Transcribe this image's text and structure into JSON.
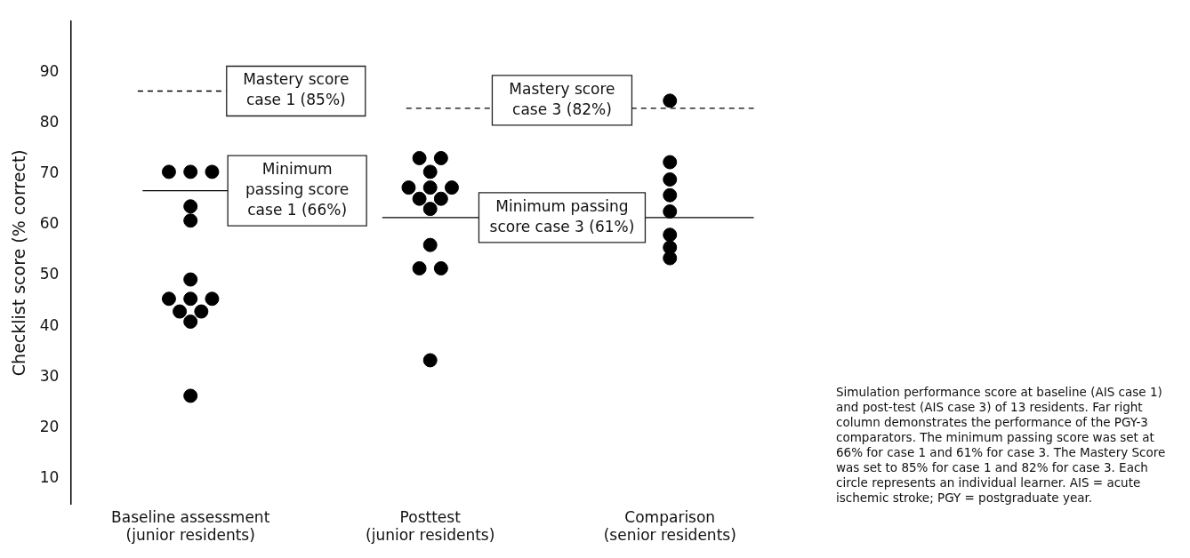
{
  "chart_data": {
    "type": "scatter",
    "ylabel": "Checklist score (% correct)",
    "categories": [
      "Baseline assessment (junior residents)",
      "Posttest (junior residents)",
      "Comparison (senior residents)"
    ],
    "series": [
      {
        "color": "#000000",
        "x": [
          "Baseline assessment (junior residents)",
          "Baseline assessment (junior residents)",
          "Baseline assessment (junior residents)",
          "Baseline assessment (junior residents)",
          "Baseline assessment (junior residents)",
          "Baseline assessment (junior residents)",
          "Baseline assessment (junior residents)",
          "Baseline assessment (junior residents)",
          "Baseline assessment (junior residents)",
          "Baseline assessment (junior residents)",
          "Baseline assessment (junior residents)",
          "Baseline assessment (junior residents)",
          "Baseline assessment (junior residents)"
        ],
        "values": [
          70.4,
          70.4,
          70.4,
          63.6,
          60.8,
          49.2,
          45.4,
          45.4,
          45.4,
          42.9,
          42.9,
          40.9,
          26.3
        ]
      },
      {
        "color": "#000000",
        "x": [
          "Posttest (junior residents)",
          "Posttest (junior residents)",
          "Posttest (junior residents)",
          "Posttest (junior residents)",
          "Posttest (junior residents)",
          "Posttest (junior residents)",
          "Posttest (junior residents)",
          "Posttest (junior residents)",
          "Posttest (junior residents)",
          "Posttest (junior residents)",
          "Posttest (junior residents)",
          "Posttest (junior residents)",
          "Posttest (junior residents)"
        ],
        "values": [
          73.1,
          73.1,
          70.4,
          67.3,
          67.3,
          67.3,
          65.1,
          65.1,
          63.1,
          56.0,
          51.4,
          51.4,
          33.3
        ]
      },
      {
        "color": "#000000",
        "x": [
          "Comparison (senior residents)",
          "Comparison (senior residents)",
          "Comparison (senior residents)",
          "Comparison (senior residents)",
          "Comparison (senior residents)",
          "Comparison (senior residents)",
          "Comparison (senior residents)",
          "Comparison (senior residents)"
        ],
        "values": [
          84.4,
          72.3,
          68.9,
          65.8,
          62.6,
          58.0,
          55.5,
          53.4
        ]
      }
    ],
    "ref_lines": [
      {
        "axis": "y",
        "value": 86.3,
        "label": "Mastery score case 1 (85%)",
        "line_style": "dashed",
        "color": "#000000"
      },
      {
        "axis": "y",
        "value": 66.7,
        "label": "Minimum passing score case 1 (66%)",
        "line_style": "solid",
        "color": "#000000"
      },
      {
        "axis": "y",
        "value": 82.9,
        "label": "Mastery score case 3 (82%)",
        "line_style": "dashed",
        "color": "#000000"
      },
      {
        "axis": "y",
        "value": 61.4,
        "label": "Minimum passing score case 3 (61%)",
        "line_style": "solid",
        "color": "#000000"
      }
    ],
    "ylim": [
      5,
      100
    ],
    "yticks": [
      10,
      20,
      30,
      40,
      50,
      60,
      70,
      80,
      90
    ],
    "grid": false,
    "legend": false,
    "marker": "circle",
    "annotations": [
      "Simulation performance score at baseline (AIS case 1) and post-test (AIS case 3) of 13 residents. Far right column demonstrates the performance of the PGY-3 comparators. The minimum passing score was set at 66% for case 1 and 61% for case 3. The Mastery Score was set to 85% for case 1 and 82% for case 3. Each circle represents an individual learner. AIS = acute ischemic stroke; PGY = postgraduate year."
    ]
  }
}
